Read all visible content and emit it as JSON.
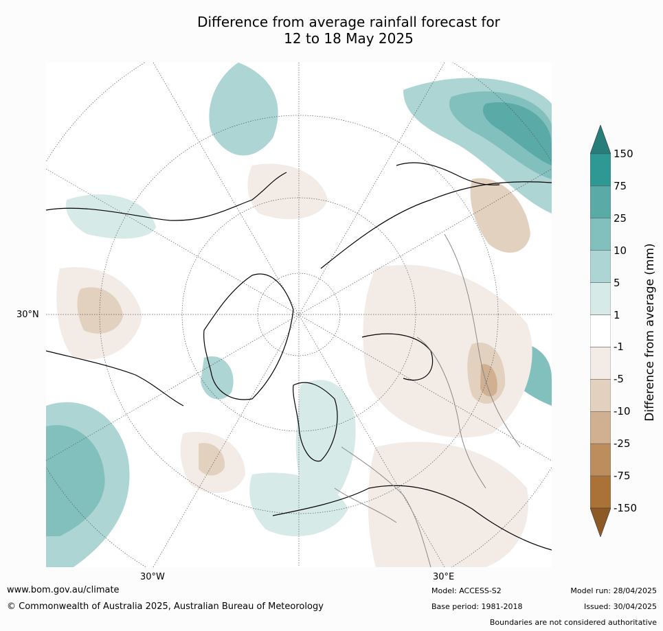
{
  "title": {
    "line1": "Difference from average rainfall forecast for",
    "line2": "12 to 18 May 2025"
  },
  "map": {
    "lat_label": "30°N",
    "lon_labels": [
      "30°W",
      "30°E"
    ]
  },
  "legend": {
    "label": "Difference from average (mm)",
    "ticks": [
      "150",
      "75",
      "25",
      "10",
      "5",
      "1",
      "-1",
      "-5",
      "-10",
      "-25",
      "-75",
      "-150"
    ],
    "colors": [
      "#267d7a",
      "#2e9994",
      "#5aaaa8",
      "#82c0be",
      "#acd5d3",
      "#d6eae8",
      "#ffffff",
      "#f3ece6",
      "#e3d1c0",
      "#d0b090",
      "#bd8d5e",
      "#ab7238",
      "#8d5a25"
    ]
  },
  "footer": {
    "website": "www.bom.gov.au/climate",
    "copyright": "© Commonwealth of Australia 2025, Australian Bureau of Meteorology",
    "model": "Model: ACCESS-S2",
    "base_period": "Base period: 1981-2018",
    "model_run": "Model run: 28/04/2025",
    "issued": "Issued: 30/04/2025",
    "disclaimer": "Boundaries are not considered authoritative"
  }
}
